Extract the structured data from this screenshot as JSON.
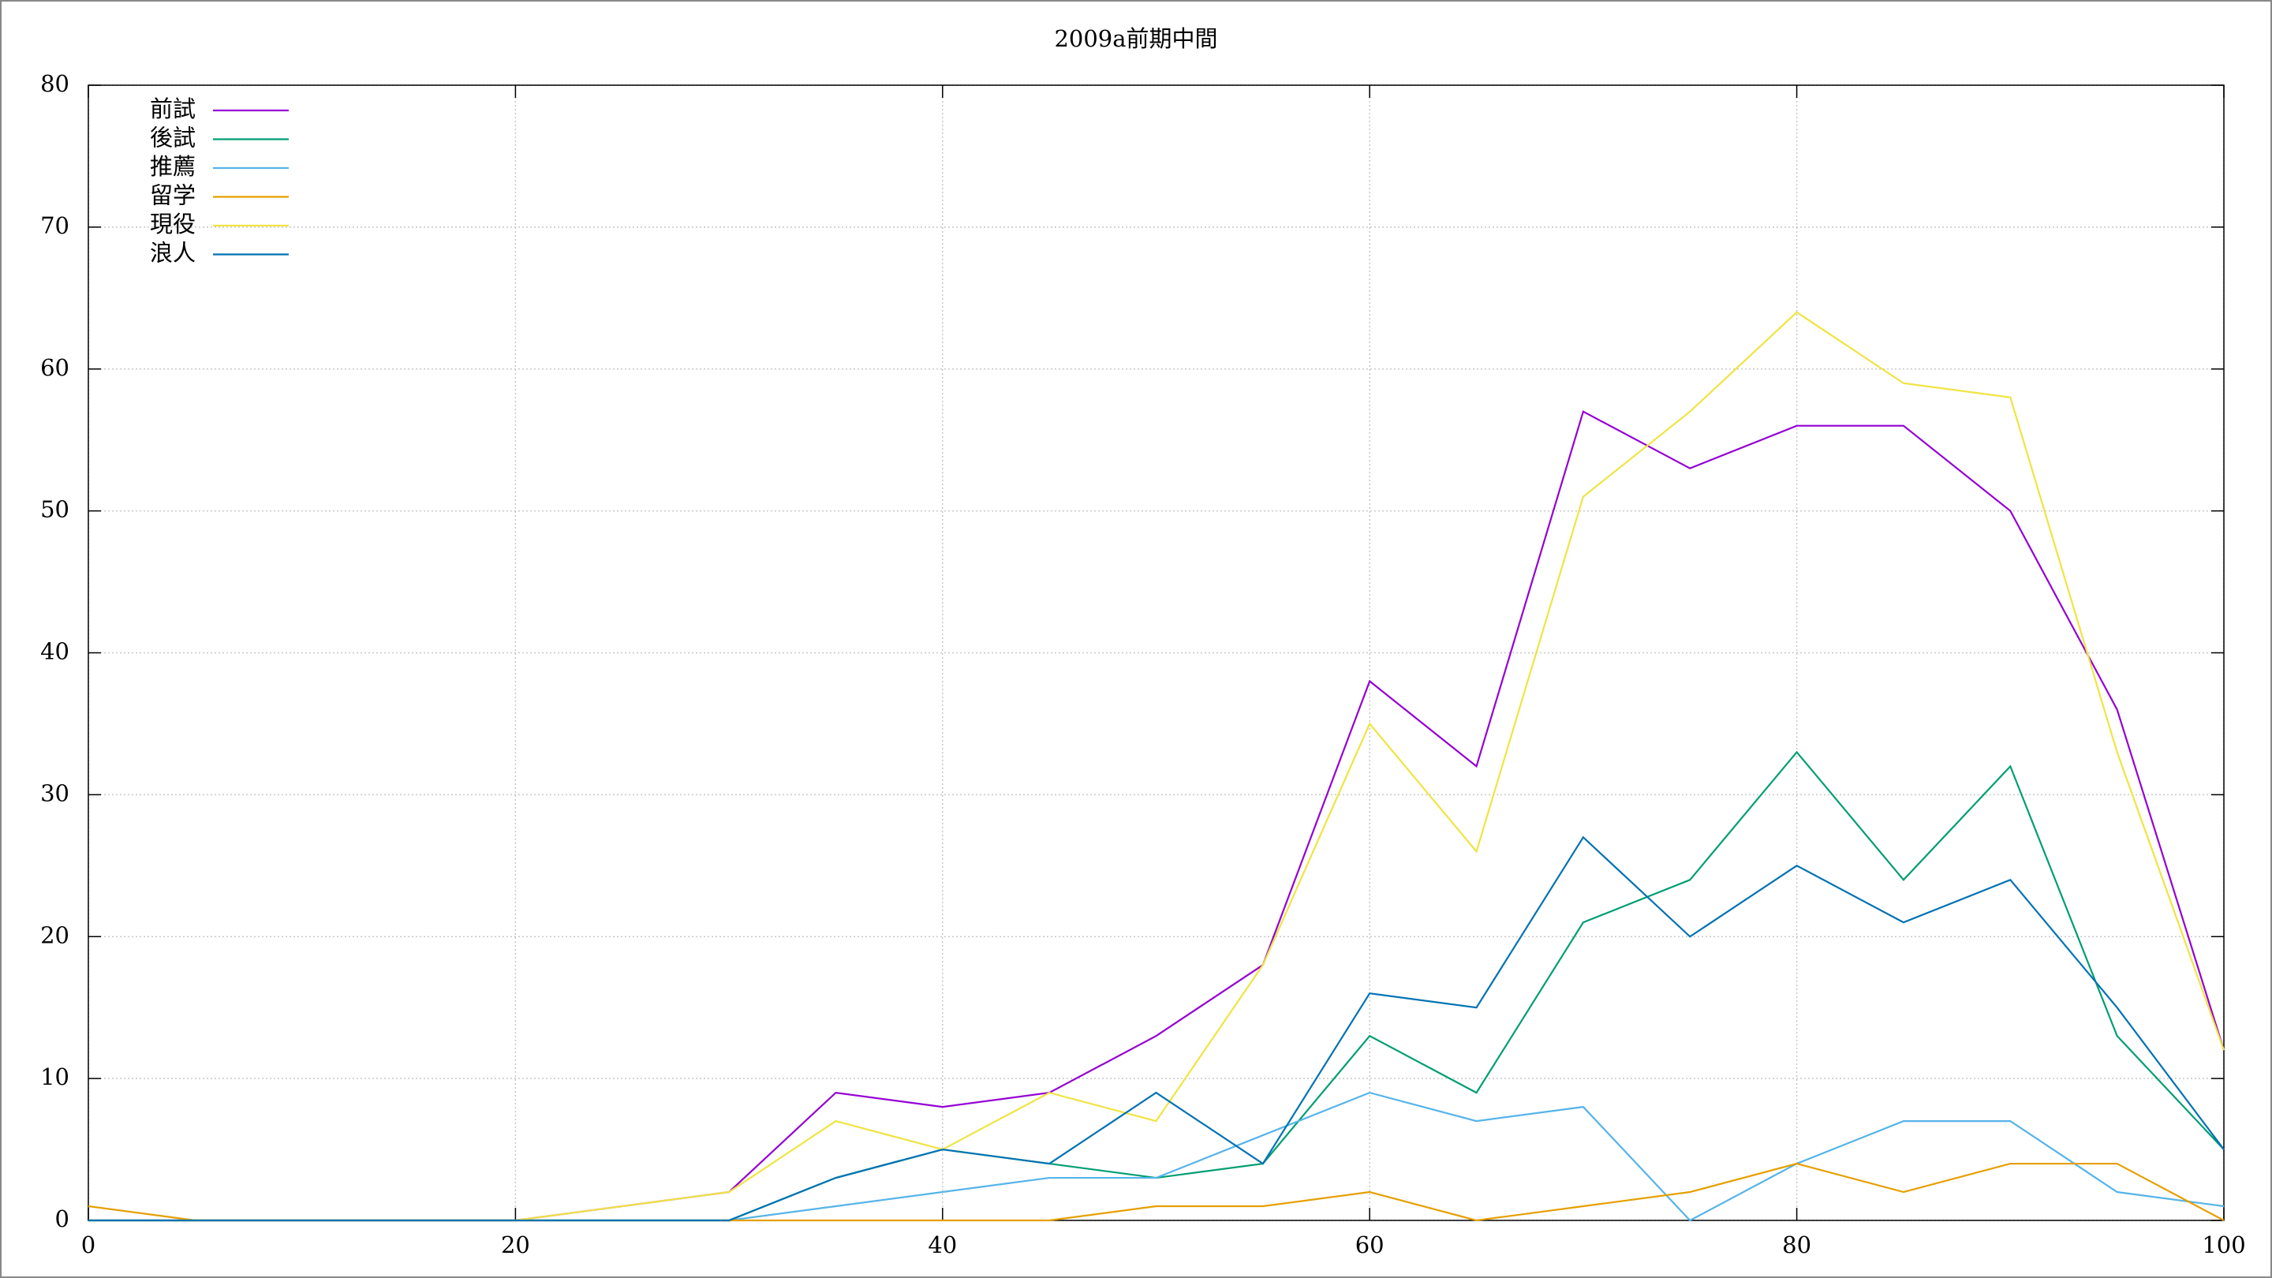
{
  "chart_data": {
    "type": "line",
    "title": "2009a前期中間",
    "x": [
      0,
      5,
      10,
      15,
      20,
      25,
      30,
      35,
      40,
      45,
      50,
      55,
      60,
      65,
      70,
      75,
      80,
      85,
      90,
      95,
      100
    ],
    "series": [
      {
        "name": "前試",
        "color": "#9400d3",
        "values": [
          0,
          0,
          0,
          0,
          0,
          1,
          2,
          9,
          8,
          9,
          13,
          18,
          38,
          32,
          57,
          53,
          56,
          56,
          50,
          36,
          12
        ]
      },
      {
        "name": "後試",
        "color": "#009e73",
        "values": [
          0,
          0,
          0,
          0,
          0,
          0,
          0,
          3,
          5,
          4,
          3,
          4,
          13,
          9,
          21,
          24,
          33,
          24,
          32,
          13,
          5
        ]
      },
      {
        "name": "推薦",
        "color": "#56b4e9",
        "values": [
          0,
          0,
          0,
          0,
          0,
          0,
          0,
          1,
          2,
          3,
          3,
          6,
          9,
          7,
          8,
          0,
          4,
          7,
          7,
          2,
          1
        ]
      },
      {
        "name": "留学",
        "color": "#e69f00",
        "values": [
          1,
          0,
          0,
          0,
          0,
          0,
          0,
          0,
          0,
          0,
          1,
          1,
          2,
          0,
          1,
          2,
          4,
          2,
          4,
          4,
          0
        ]
      },
      {
        "name": "現役",
        "color": "#f0e442",
        "values": [
          0,
          0,
          0,
          0,
          0,
          1,
          2,
          7,
          5,
          9,
          7,
          18,
          35,
          26,
          51,
          57,
          64,
          59,
          58,
          33,
          12
        ]
      },
      {
        "name": "浪人",
        "color": "#0072b2",
        "values": [
          0,
          0,
          0,
          0,
          0,
          0,
          0,
          3,
          5,
          4,
          9,
          4,
          16,
          15,
          27,
          20,
          25,
          21,
          24,
          15,
          5
        ]
      }
    ],
    "xlim": [
      0,
      100
    ],
    "xticks": [
      0,
      20,
      40,
      60,
      80,
      100
    ],
    "ylim": [
      0,
      80
    ],
    "yticks": [
      0,
      10,
      20,
      30,
      40,
      50,
      60,
      70,
      80
    ],
    "grid": true,
    "legend": "top-left"
  }
}
